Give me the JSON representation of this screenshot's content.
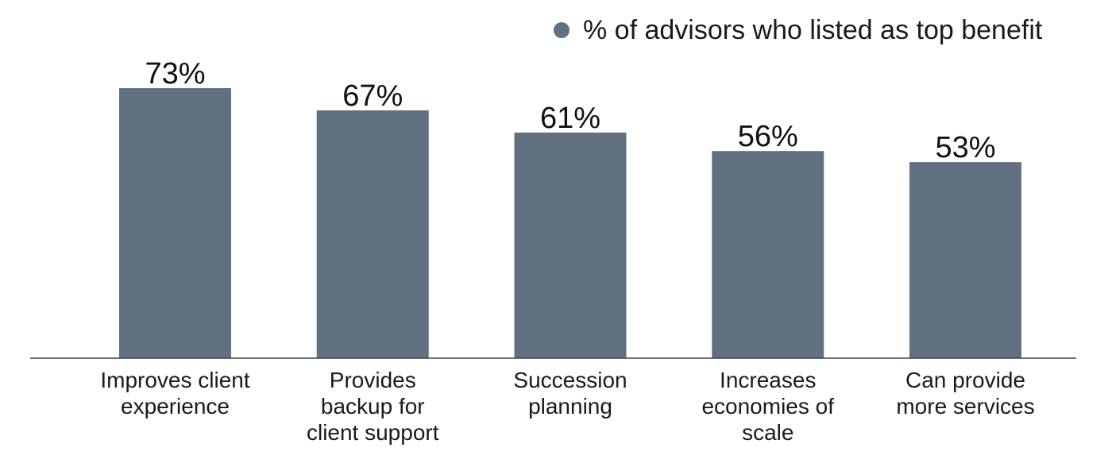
{
  "chart_data": {
    "type": "bar",
    "categories": [
      [
        "Improves client",
        "experience"
      ],
      [
        "Provides",
        "backup for",
        "client support"
      ],
      [
        "Succession",
        "planning"
      ],
      [
        "Increases",
        "economies of",
        "scale"
      ],
      [
        "Can provide",
        "more services"
      ]
    ],
    "series": [
      {
        "name": "% of advisors who listed as top benefit",
        "values": [
          73,
          67,
          61,
          56,
          53
        ]
      }
    ],
    "value_labels": [
      "73%",
      "67%",
      "61%",
      "56%",
      "53%"
    ],
    "ylim": [
      0,
      80
    ],
    "grid": false,
    "legend_position": "top-right",
    "colors": {
      "bar": "#627181",
      "axis": "#444444",
      "legend_marker": "#627181"
    }
  }
}
